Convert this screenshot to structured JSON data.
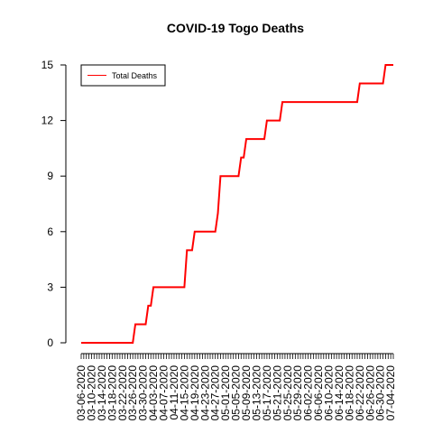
{
  "chart_data": {
    "type": "line",
    "title": "COVID-19 Togo Deaths",
    "xlabel": "",
    "ylabel": "",
    "ylim": [
      0,
      15
    ],
    "y_ticks": [
      0,
      3,
      6,
      9,
      12,
      15
    ],
    "x_ticks": [
      "03-06-2020",
      "03-10-2020",
      "03-14-2020",
      "03-18-2020",
      "03-22-2020",
      "03-26-2020",
      "03-30-2020",
      "04-03-2020",
      "04-07-2020",
      "04-11-2020",
      "04-15-2020",
      "04-19-2020",
      "04-23-2020",
      "04-27-2020",
      "05-01-2020",
      "05-05-2020",
      "05-09-2020",
      "05-13-2020",
      "05-17-2020",
      "05-21-2020",
      "05-25-2020",
      "05-29-2020",
      "06-02-2020",
      "06-06-2020",
      "06-10-2020",
      "06-14-2020",
      "06-18-2020",
      "06-22-2020",
      "06-26-2020",
      "06-30-2020",
      "07-04-2020"
    ],
    "x_range": [
      "03-06-2020",
      "07-05-2020"
    ],
    "legend": {
      "position": "top-left",
      "entries": [
        "Total Deaths"
      ]
    },
    "series": [
      {
        "name": "Total Deaths",
        "color": "#ff0000",
        "points": [
          [
            "03-06-2020",
            0
          ],
          [
            "03-26-2020",
            0
          ],
          [
            "03-27-2020",
            1
          ],
          [
            "03-31-2020",
            1
          ],
          [
            "04-01-2020",
            2
          ],
          [
            "04-02-2020",
            2
          ],
          [
            "04-03-2020",
            3
          ],
          [
            "04-15-2020",
            3
          ],
          [
            "04-16-2020",
            5
          ],
          [
            "04-18-2020",
            5
          ],
          [
            "04-19-2020",
            6
          ],
          [
            "04-27-2020",
            6
          ],
          [
            "04-28-2020",
            7
          ],
          [
            "04-29-2020",
            9
          ],
          [
            "05-06-2020",
            9
          ],
          [
            "05-07-2020",
            10
          ],
          [
            "05-08-2020",
            10
          ],
          [
            "05-09-2020",
            11
          ],
          [
            "05-16-2020",
            11
          ],
          [
            "05-17-2020",
            12
          ],
          [
            "05-22-2020",
            12
          ],
          [
            "05-23-2020",
            13
          ],
          [
            "06-21-2020",
            13
          ],
          [
            "06-22-2020",
            14
          ],
          [
            "07-01-2020",
            14
          ],
          [
            "07-02-2020",
            15
          ],
          [
            "07-05-2020",
            15
          ]
        ]
      }
    ]
  }
}
